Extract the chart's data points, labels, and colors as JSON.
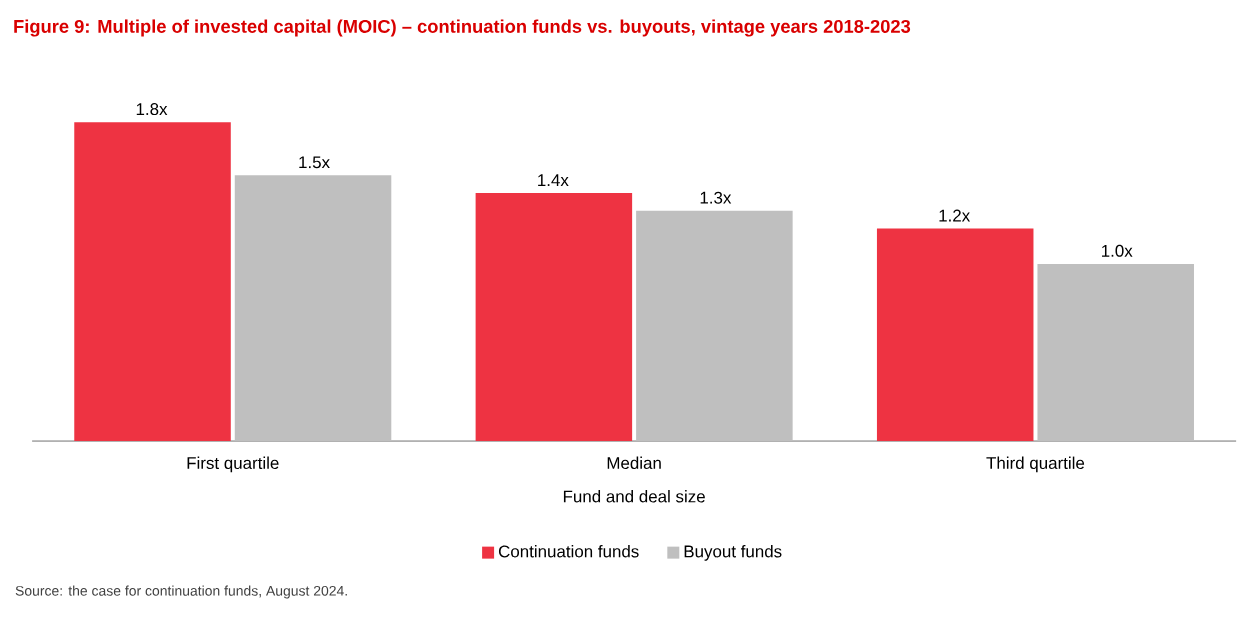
{
  "chart_data": {
    "type": "bar",
    "title": "Figure 9: Multiple of invested capital (MOIC) – continuation funds vs. buyouts, vintage years 2018-2023",
    "xlabel": "Fund and deal size",
    "categories": [
      "First quartile",
      "Median",
      "Third quartile"
    ],
    "series": [
      {
        "name": "Continuation funds",
        "color": "#ee3342",
        "values": [
          1.8,
          1.4,
          1.2
        ],
        "value_labels": [
          "1.8x",
          "1.4x",
          "1.2x"
        ]
      },
      {
        "name": "Buyout funds",
        "color": "#bfbfbf",
        "values": [
          1.5,
          1.3,
          1.0
        ],
        "value_labels": [
          "1.5x",
          "1.3x",
          "1.0x"
        ]
      }
    ],
    "legend": "bottom",
    "tick_labels": "x",
    "annotations": [
      "Source: the case for continuation funds, August 2024."
    ]
  }
}
